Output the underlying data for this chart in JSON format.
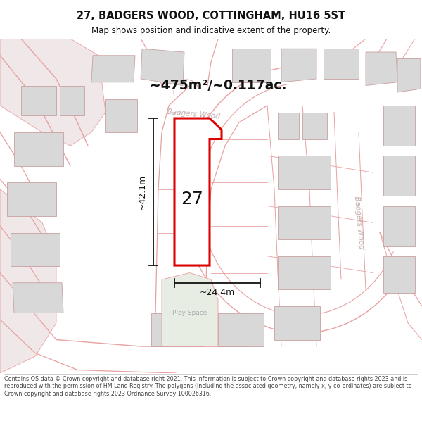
{
  "title_line1": "27, BADGERS WOOD, COTTINGHAM, HU16 5ST",
  "title_line2": "Map shows position and indicative extent of the property.",
  "area_label": "~475m²/~0.117ac.",
  "plot_number": "27",
  "dim_height": "~42.1m",
  "dim_width": "~24.4m",
  "street_label_top": "Badgers Wood",
  "street_label_right": "Badgers Wood",
  "play_space_label": "Play Space",
  "footer_text": "Contains OS data © Crown copyright and database right 2021. This information is subject to Crown copyright and database rights 2023 and is reproduced with the permission of HM Land Registry. The polygons (including the associated geometry, namely x, y co-ordinates) are subject to Crown copyright and database rights 2023 Ordnance Survey 100026316.",
  "bg_color": "#ffffff",
  "map_bg": "#f5f5f5",
  "road_color": "#e8a0a0",
  "building_color": "#d8d8d8",
  "building_edge": "#c8a0a0",
  "highlight_color": "#dd0000",
  "highlight_fill": "#ffffff",
  "dim_color": "#111111",
  "play_space_color": "#e8ede4",
  "text_color": "#111111",
  "footer_color": "#444444",
  "street_label_color": "#c0a8a8"
}
